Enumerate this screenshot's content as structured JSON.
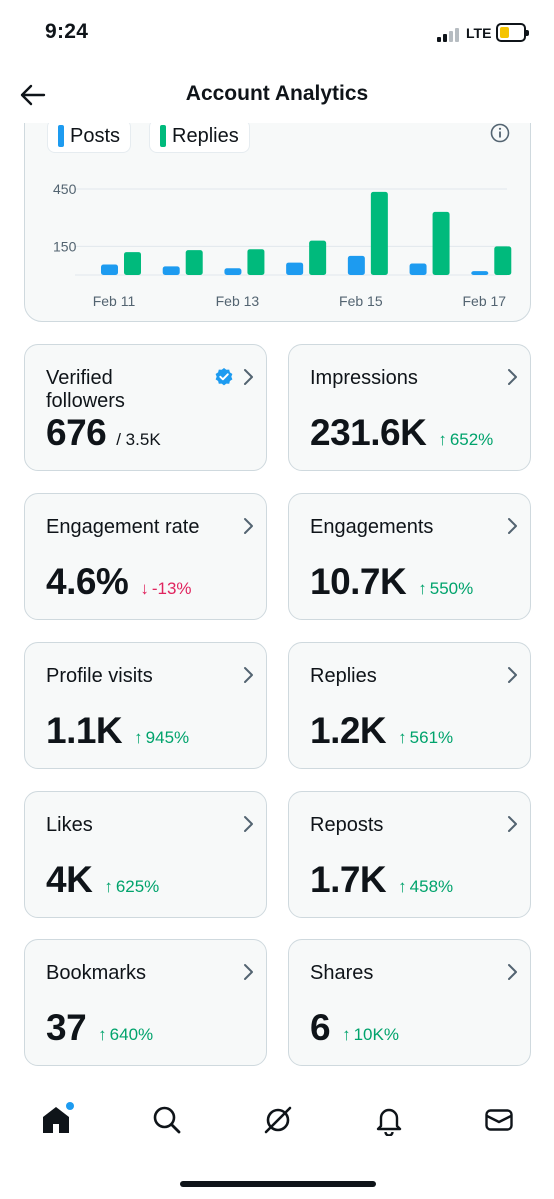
{
  "status_bar": {
    "time": "9:24",
    "network": "LTE"
  },
  "header": {
    "title": "Account Analytics"
  },
  "chart_data": {
    "type": "bar",
    "legend": [
      {
        "name": "Posts",
        "color": "#1d9bf0"
      },
      {
        "name": "Replies",
        "color": "#00ba7c"
      }
    ],
    "y_ticks": [
      "450",
      "150"
    ],
    "y_tick_values": [
      450,
      150
    ],
    "x_ticks": [
      "Feb 11",
      "Feb 13",
      "Feb 15",
      "Feb 17"
    ],
    "categories": [
      "Feb 11",
      "Feb 12",
      "Feb 13",
      "Feb 14",
      "Feb 15",
      "Feb 16",
      "Feb 17"
    ],
    "series": [
      {
        "name": "Posts",
        "color": "#1d9bf0",
        "values": [
          55,
          45,
          35,
          65,
          100,
          60,
          20
        ]
      },
      {
        "name": "Replies",
        "color": "#00ba7c",
        "values": [
          120,
          130,
          135,
          180,
          435,
          330,
          150
        ]
      }
    ],
    "ylim": [
      0,
      450
    ]
  },
  "metrics": [
    {
      "label": "Verified followers",
      "value": "676",
      "sub": "/ 3.5K",
      "delta": "",
      "direction": "",
      "verified": true
    },
    {
      "label": "Impressions",
      "value": "231.6K",
      "sub": "",
      "delta": "652%",
      "direction": "up"
    },
    {
      "label": "Engagement rate",
      "value": "4.6%",
      "sub": "",
      "delta": "-13%",
      "direction": "down"
    },
    {
      "label": "Engagements",
      "value": "10.7K",
      "sub": "",
      "delta": "550%",
      "direction": "up"
    },
    {
      "label": "Profile visits",
      "value": "1.1K",
      "sub": "",
      "delta": "945%",
      "direction": "up"
    },
    {
      "label": "Replies",
      "value": "1.2K",
      "sub": "",
      "delta": "561%",
      "direction": "up"
    },
    {
      "label": "Likes",
      "value": "4K",
      "sub": "",
      "delta": "625%",
      "direction": "up"
    },
    {
      "label": "Reposts",
      "value": "1.7K",
      "sub": "",
      "delta": "458%",
      "direction": "up"
    },
    {
      "label": "Bookmarks",
      "value": "37",
      "sub": "",
      "delta": "640%",
      "direction": "up"
    },
    {
      "label": "Shares",
      "value": "6",
      "sub": "",
      "delta": "10K%",
      "direction": "up"
    }
  ],
  "arrows": {
    "up": "↑",
    "down": "↓"
  },
  "nav": [
    {
      "name": "home-icon"
    },
    {
      "name": "search-icon"
    },
    {
      "name": "grok-icon"
    },
    {
      "name": "bell-icon"
    },
    {
      "name": "mail-icon"
    }
  ]
}
